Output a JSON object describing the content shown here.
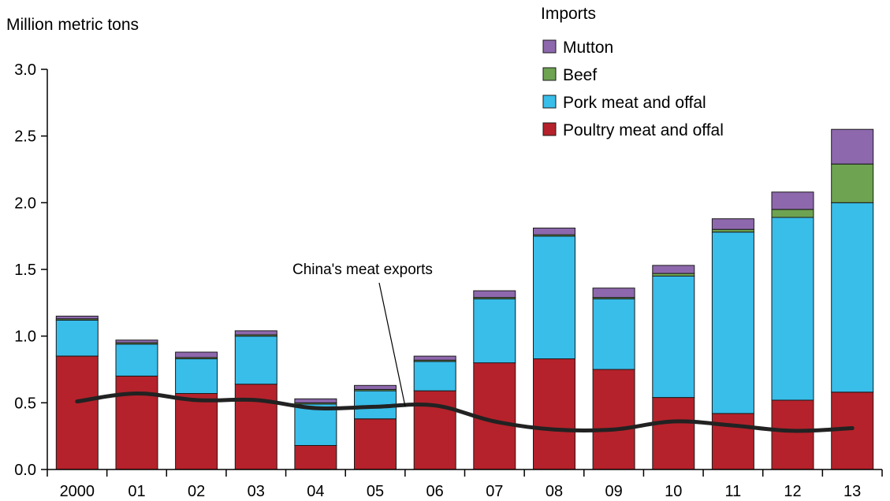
{
  "chart_data": {
    "type": "bar",
    "stacked": true,
    "ylabel": "Million metric tons",
    "ylim": [
      0,
      3.0
    ],
    "yticks": [
      "0.0",
      "0.5",
      "1.0",
      "1.5",
      "2.0",
      "2.5",
      "3.0"
    ],
    "categories": [
      "2000",
      "01",
      "02",
      "03",
      "04",
      "05",
      "06",
      "07",
      "08",
      "09",
      "10",
      "11",
      "12",
      "13"
    ],
    "legend": {
      "title": "Imports",
      "placement": "top-right",
      "entries": [
        "Mutton",
        "Beef",
        "Pork meat and offal",
        "Poultry meat and offal"
      ]
    },
    "series": [
      {
        "name": "Poultry meat and offal",
        "color": "#b5222b",
        "values": [
          0.85,
          0.7,
          0.57,
          0.64,
          0.18,
          0.38,
          0.59,
          0.8,
          0.83,
          0.75,
          0.54,
          0.42,
          0.52,
          0.58
        ]
      },
      {
        "name": "Pork meat and offal",
        "color": "#39bde9",
        "values": [
          0.27,
          0.24,
          0.26,
          0.36,
          0.31,
          0.21,
          0.22,
          0.48,
          0.92,
          0.53,
          0.91,
          1.36,
          1.37,
          1.42
        ]
      },
      {
        "name": "Beef",
        "color": "#6ea352",
        "values": [
          0.01,
          0.01,
          0.01,
          0.01,
          0.01,
          0.01,
          0.01,
          0.01,
          0.01,
          0.01,
          0.02,
          0.02,
          0.06,
          0.29
        ]
      },
      {
        "name": "Mutton",
        "color": "#8e68ad",
        "values": [
          0.02,
          0.02,
          0.04,
          0.03,
          0.03,
          0.03,
          0.03,
          0.05,
          0.05,
          0.07,
          0.06,
          0.08,
          0.13,
          0.26
        ]
      }
    ],
    "line_series": {
      "name": "China's meat exports",
      "color": "#222222",
      "values": [
        0.51,
        0.57,
        0.52,
        0.52,
        0.46,
        0.47,
        0.48,
        0.36,
        0.3,
        0.3,
        0.36,
        0.33,
        0.29,
        0.31
      ]
    },
    "annotations": [
      {
        "text": "China's meat exports",
        "target": "line_series",
        "at_category": "05"
      }
    ]
  }
}
